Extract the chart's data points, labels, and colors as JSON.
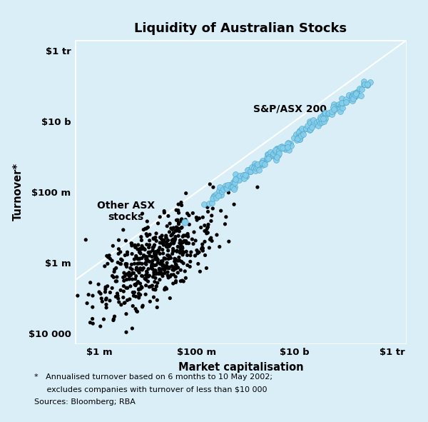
{
  "title": "Liquidity of Australian Stocks",
  "xlabel": "Market capitalisation",
  "ylabel": "Turnover*",
  "bg_color": "#daeef8",
  "plot_bg_color": "#daeef8",
  "black_color": "#000000",
  "blue_color": "#87ceeb",
  "blue_edge_color": "#4da8cc",
  "diagonal_color": "#ffffff",
  "footnote_line1": "*   Annualised turnover based on 6 months to 10 May 2002;",
  "footnote_line2": "     excludes companies with turnover of less than $10 000",
  "footnote_line3": "Sources: Bloomberg; RBA",
  "label_sp": "S&P/ASX 200",
  "label_asx": "Other ASX\nstocks",
  "x_ticks": [
    1000000.0,
    100000000.0,
    10000000000.0,
    1000000000000.0
  ],
  "x_tick_labels": [
    "$1 m",
    "$100 m",
    "$10 b",
    "$1 tr"
  ],
  "y_ticks": [
    10000.0,
    1000000.0,
    100000000.0,
    10000000000.0,
    1000000000000.0
  ],
  "y_tick_labels": [
    "$10 000",
    "$1 m",
    "$100 m",
    "$10 b",
    "$1 tr"
  ],
  "xlim_log": [
    5.5,
    12.3
  ],
  "ylim_log": [
    3.7,
    12.3
  ],
  "seed": 42,
  "n_black": 530,
  "n_blue": 200
}
